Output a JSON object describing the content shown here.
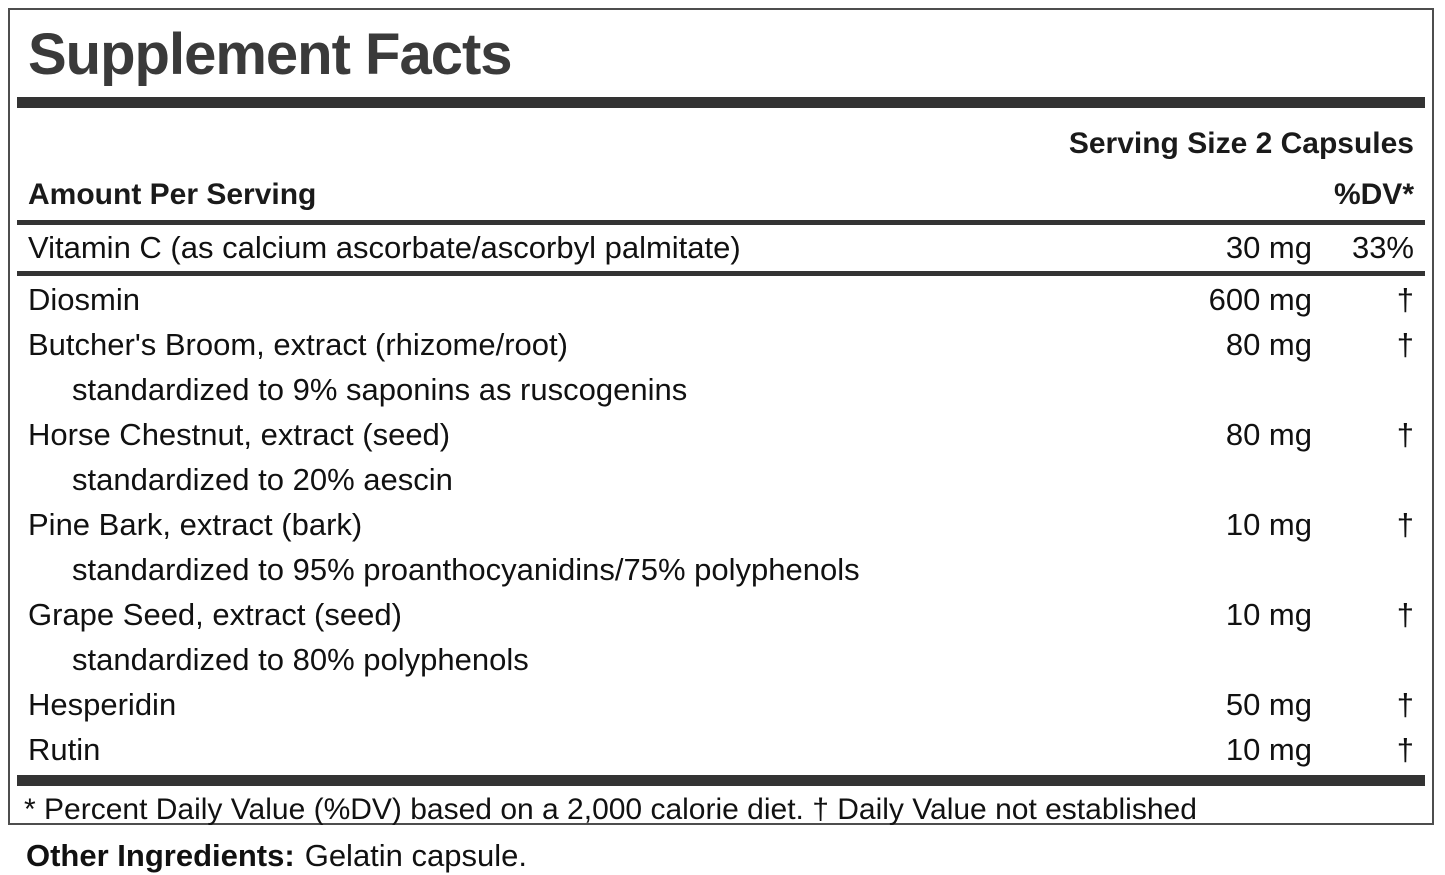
{
  "label": {
    "title": "Supplement Facts",
    "serving_size": "Serving Size 2 Capsules",
    "header": {
      "amount_per_serving": "Amount Per Serving",
      "dv": "%DV*"
    },
    "rows": [
      {
        "name": "Vitamin C (as calcium ascorbate/ascorbyl palmitate)",
        "amount": "30 mg",
        "dv": "33%"
      },
      {
        "name": "Diosmin",
        "amount": "600 mg",
        "dv": "†"
      },
      {
        "name": "Butcher's Broom, extract (rhizome/root)",
        "amount": "80 mg",
        "dv": "†",
        "sub": "standardized to 9% saponins as ruscogenins"
      },
      {
        "name": "Horse Chestnut, extract (seed)",
        "amount": "80 mg",
        "dv": "†",
        "sub": "standardized to 20% aescin"
      },
      {
        "name": "Pine Bark, extract (bark)",
        "amount": "10 mg",
        "dv": "†",
        "sub": "standardized to 95% proanthocyanidins/75% polyphenols"
      },
      {
        "name": "Grape Seed, extract (seed)",
        "amount": "10 mg",
        "dv": "†",
        "sub": "standardized to 80% polyphenols"
      },
      {
        "name": "Hesperidin",
        "amount": "50 mg",
        "dv": "†"
      },
      {
        "name": "Rutin",
        "amount": "10 mg",
        "dv": "†"
      }
    ],
    "footnote": "* Percent Daily Value (%DV) based on a 2,000 calorie diet. † Daily Value not established",
    "other_ingredients": {
      "label": "Other Ingredients:",
      "value": "Gelatin capsule."
    },
    "colors": {
      "rule_bar": "#333333",
      "border": "#4e4e4e",
      "title_text": "#3a3a3a",
      "body_text": "#111111"
    }
  }
}
